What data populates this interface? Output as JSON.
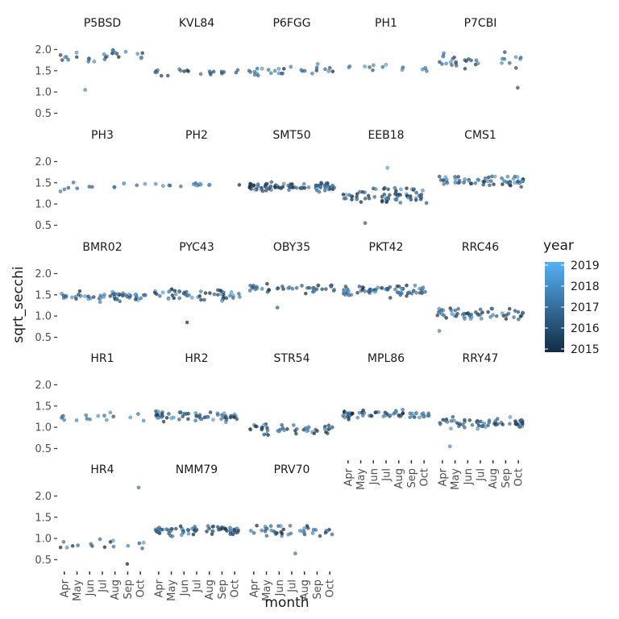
{
  "chart_data": {
    "type": "scatter",
    "xlabel": "month",
    "ylabel": "sqrt_secchi",
    "months": [
      "Apr",
      "May",
      "Jun",
      "Jul",
      "Aug",
      "Sep",
      "Oct"
    ],
    "y_ticks": [
      0.5,
      1.0,
      1.5,
      2.0
    ],
    "y_tick_labels": [
      "0.5",
      "1.0",
      "1.5",
      "2.0"
    ],
    "ylim": [
      0.3,
      2.35
    ],
    "legend": {
      "title": "year",
      "labels": [
        "2019",
        "2018",
        "2017",
        "2016",
        "2015"
      ],
      "range": [
        2015,
        2019
      ],
      "low_color": "#132B43",
      "high_color": "#56B1F7"
    },
    "panels": [
      {
        "name": "P5BSD",
        "n": 26,
        "center": 1.85,
        "spread": 0.25,
        "year_bias": 0.5,
        "outliers": [
          1.05
        ]
      },
      {
        "name": "KVL84",
        "n": 22,
        "center": 1.45,
        "spread": 0.12,
        "year_bias": 0.3,
        "outliers": []
      },
      {
        "name": "P6FGG",
        "n": 28,
        "center": 1.5,
        "spread": 0.18,
        "year_bias": 0.6,
        "outliers": []
      },
      {
        "name": "PH1",
        "n": 14,
        "center": 1.55,
        "spread": 0.1,
        "year_bias": 0.9,
        "outliers": []
      },
      {
        "name": "P7CBI",
        "n": 30,
        "center": 1.75,
        "spread": 0.25,
        "year_bias": 0.5,
        "outliers": [
          1.1
        ]
      },
      {
        "name": "PH3",
        "n": 12,
        "center": 1.4,
        "spread": 0.15,
        "year_bias": 0.9,
        "outliers": []
      },
      {
        "name": "PH2",
        "n": 14,
        "center": 1.45,
        "spread": 0.12,
        "year_bias": 0.9,
        "outliers": []
      },
      {
        "name": "SMT50",
        "n": 80,
        "center": 1.4,
        "spread": 0.15,
        "year_bias": 0.3,
        "outliers": []
      },
      {
        "name": "EEB18",
        "n": 70,
        "center": 1.2,
        "spread": 0.25,
        "year_bias": 0.3,
        "outliers": [
          0.55,
          1.85
        ]
      },
      {
        "name": "CMS1",
        "n": 60,
        "center": 1.55,
        "spread": 0.18,
        "year_bias": 0.5,
        "outliers": []
      },
      {
        "name": "BMR02",
        "n": 55,
        "center": 1.45,
        "spread": 0.18,
        "year_bias": 0.4,
        "outliers": []
      },
      {
        "name": "PYC43",
        "n": 50,
        "center": 1.5,
        "spread": 0.22,
        "year_bias": 0.3,
        "outliers": [
          0.85
        ]
      },
      {
        "name": "OBY35",
        "n": 40,
        "center": 1.65,
        "spread": 0.15,
        "year_bias": 0.4,
        "outliers": [
          1.2
        ]
      },
      {
        "name": "PKT42",
        "n": 65,
        "center": 1.6,
        "spread": 0.2,
        "year_bias": 0.4,
        "outliers": []
      },
      {
        "name": "RRC46",
        "n": 55,
        "center": 1.05,
        "spread": 0.2,
        "year_bias": 0.3,
        "outliers": [
          0.65
        ]
      },
      {
        "name": "HR1",
        "n": 16,
        "center": 1.25,
        "spread": 0.18,
        "year_bias": 0.9,
        "outliers": []
      },
      {
        "name": "HR2",
        "n": 60,
        "center": 1.25,
        "spread": 0.18,
        "year_bias": 0.3,
        "outliers": []
      },
      {
        "name": "STR54",
        "n": 45,
        "center": 0.95,
        "spread": 0.25,
        "year_bias": 0.3,
        "outliers": []
      },
      {
        "name": "MPL86",
        "n": 60,
        "center": 1.3,
        "spread": 0.15,
        "year_bias": 0.5,
        "outliers": []
      },
      {
        "name": "RRY47",
        "n": 60,
        "center": 1.1,
        "spread": 0.18,
        "year_bias": 0.4,
        "outliers": [
          0.55
        ]
      },
      {
        "name": "HR4",
        "n": 16,
        "center": 0.85,
        "spread": 0.2,
        "year_bias": 0.6,
        "outliers": [
          2.2,
          0.4
        ]
      },
      {
        "name": "NMM79",
        "n": 70,
        "center": 1.2,
        "spread": 0.17,
        "year_bias": 0.4,
        "outliers": []
      },
      {
        "name": "PRV70",
        "n": 40,
        "center": 1.2,
        "spread": 0.2,
        "year_bias": 0.5,
        "outliers": [
          0.65
        ]
      }
    ]
  }
}
